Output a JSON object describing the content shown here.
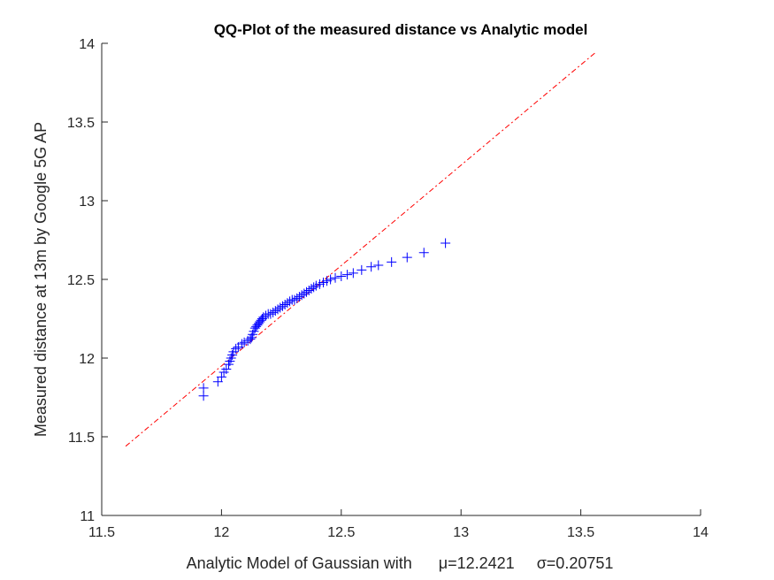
{
  "chart_data": {
    "type": "scatter",
    "title": "QQ-Plot of the measured distance vs Analytic model",
    "xlabel": "Analytic Model of Gaussian with      μ=12.2421     σ=0.20751",
    "ylabel": "Measured distance at 13m by Google 5G AP",
    "xlim": [
      11.5,
      14
    ],
    "ylim": [
      11,
      14
    ],
    "xticks": [
      "11.5",
      "12",
      "12.5",
      "13",
      "13.5",
      "14"
    ],
    "yticks": [
      "11",
      "11.5",
      "12",
      "12.5",
      "13",
      "13.5",
      "14"
    ],
    "grid": false,
    "colors": {
      "points": "#0000ff",
      "reference_line": "#ff0000",
      "axes": "#262626"
    },
    "reference_line": {
      "style": "dash-dot",
      "x": [
        11.6,
        13.56
      ],
      "y": [
        11.44,
        13.94
      ]
    },
    "series": [
      {
        "marker": "+",
        "x": [
          11.925,
          11.925,
          11.985,
          12.0,
          12.01,
          12.02,
          12.03,
          12.035,
          12.04,
          12.045,
          12.05,
          12.06,
          12.07,
          12.085,
          12.095,
          12.11,
          12.12,
          12.125,
          12.13,
          12.135,
          12.14,
          12.145,
          12.15,
          12.155,
          12.16,
          12.165,
          12.17,
          12.175,
          12.185,
          12.195,
          12.205,
          12.215,
          12.225,
          12.235,
          12.245,
          12.255,
          12.265,
          12.275,
          12.285,
          12.295,
          12.305,
          12.315,
          12.325,
          12.335,
          12.345,
          12.355,
          12.365,
          12.375,
          12.385,
          12.395,
          12.41,
          12.425,
          12.44,
          12.455,
          12.475,
          12.5,
          12.525,
          12.55,
          12.585,
          12.625,
          12.655,
          12.71,
          12.775,
          12.845,
          12.935
        ],
        "y": [
          11.76,
          11.81,
          11.85,
          11.88,
          11.91,
          11.93,
          11.96,
          11.98,
          12.0,
          12.02,
          12.04,
          12.06,
          12.07,
          12.09,
          12.1,
          12.11,
          12.12,
          12.13,
          12.15,
          12.17,
          12.19,
          12.2,
          12.21,
          12.22,
          12.23,
          12.24,
          12.25,
          12.26,
          12.27,
          12.28,
          12.28,
          12.29,
          12.3,
          12.31,
          12.32,
          12.33,
          12.34,
          12.35,
          12.36,
          12.37,
          12.37,
          12.38,
          12.39,
          12.4,
          12.41,
          12.42,
          12.43,
          12.44,
          12.45,
          12.46,
          12.47,
          12.48,
          12.49,
          12.5,
          12.51,
          12.52,
          12.53,
          12.54,
          12.56,
          12.58,
          12.59,
          12.61,
          12.64,
          12.67,
          12.73
        ]
      }
    ]
  }
}
